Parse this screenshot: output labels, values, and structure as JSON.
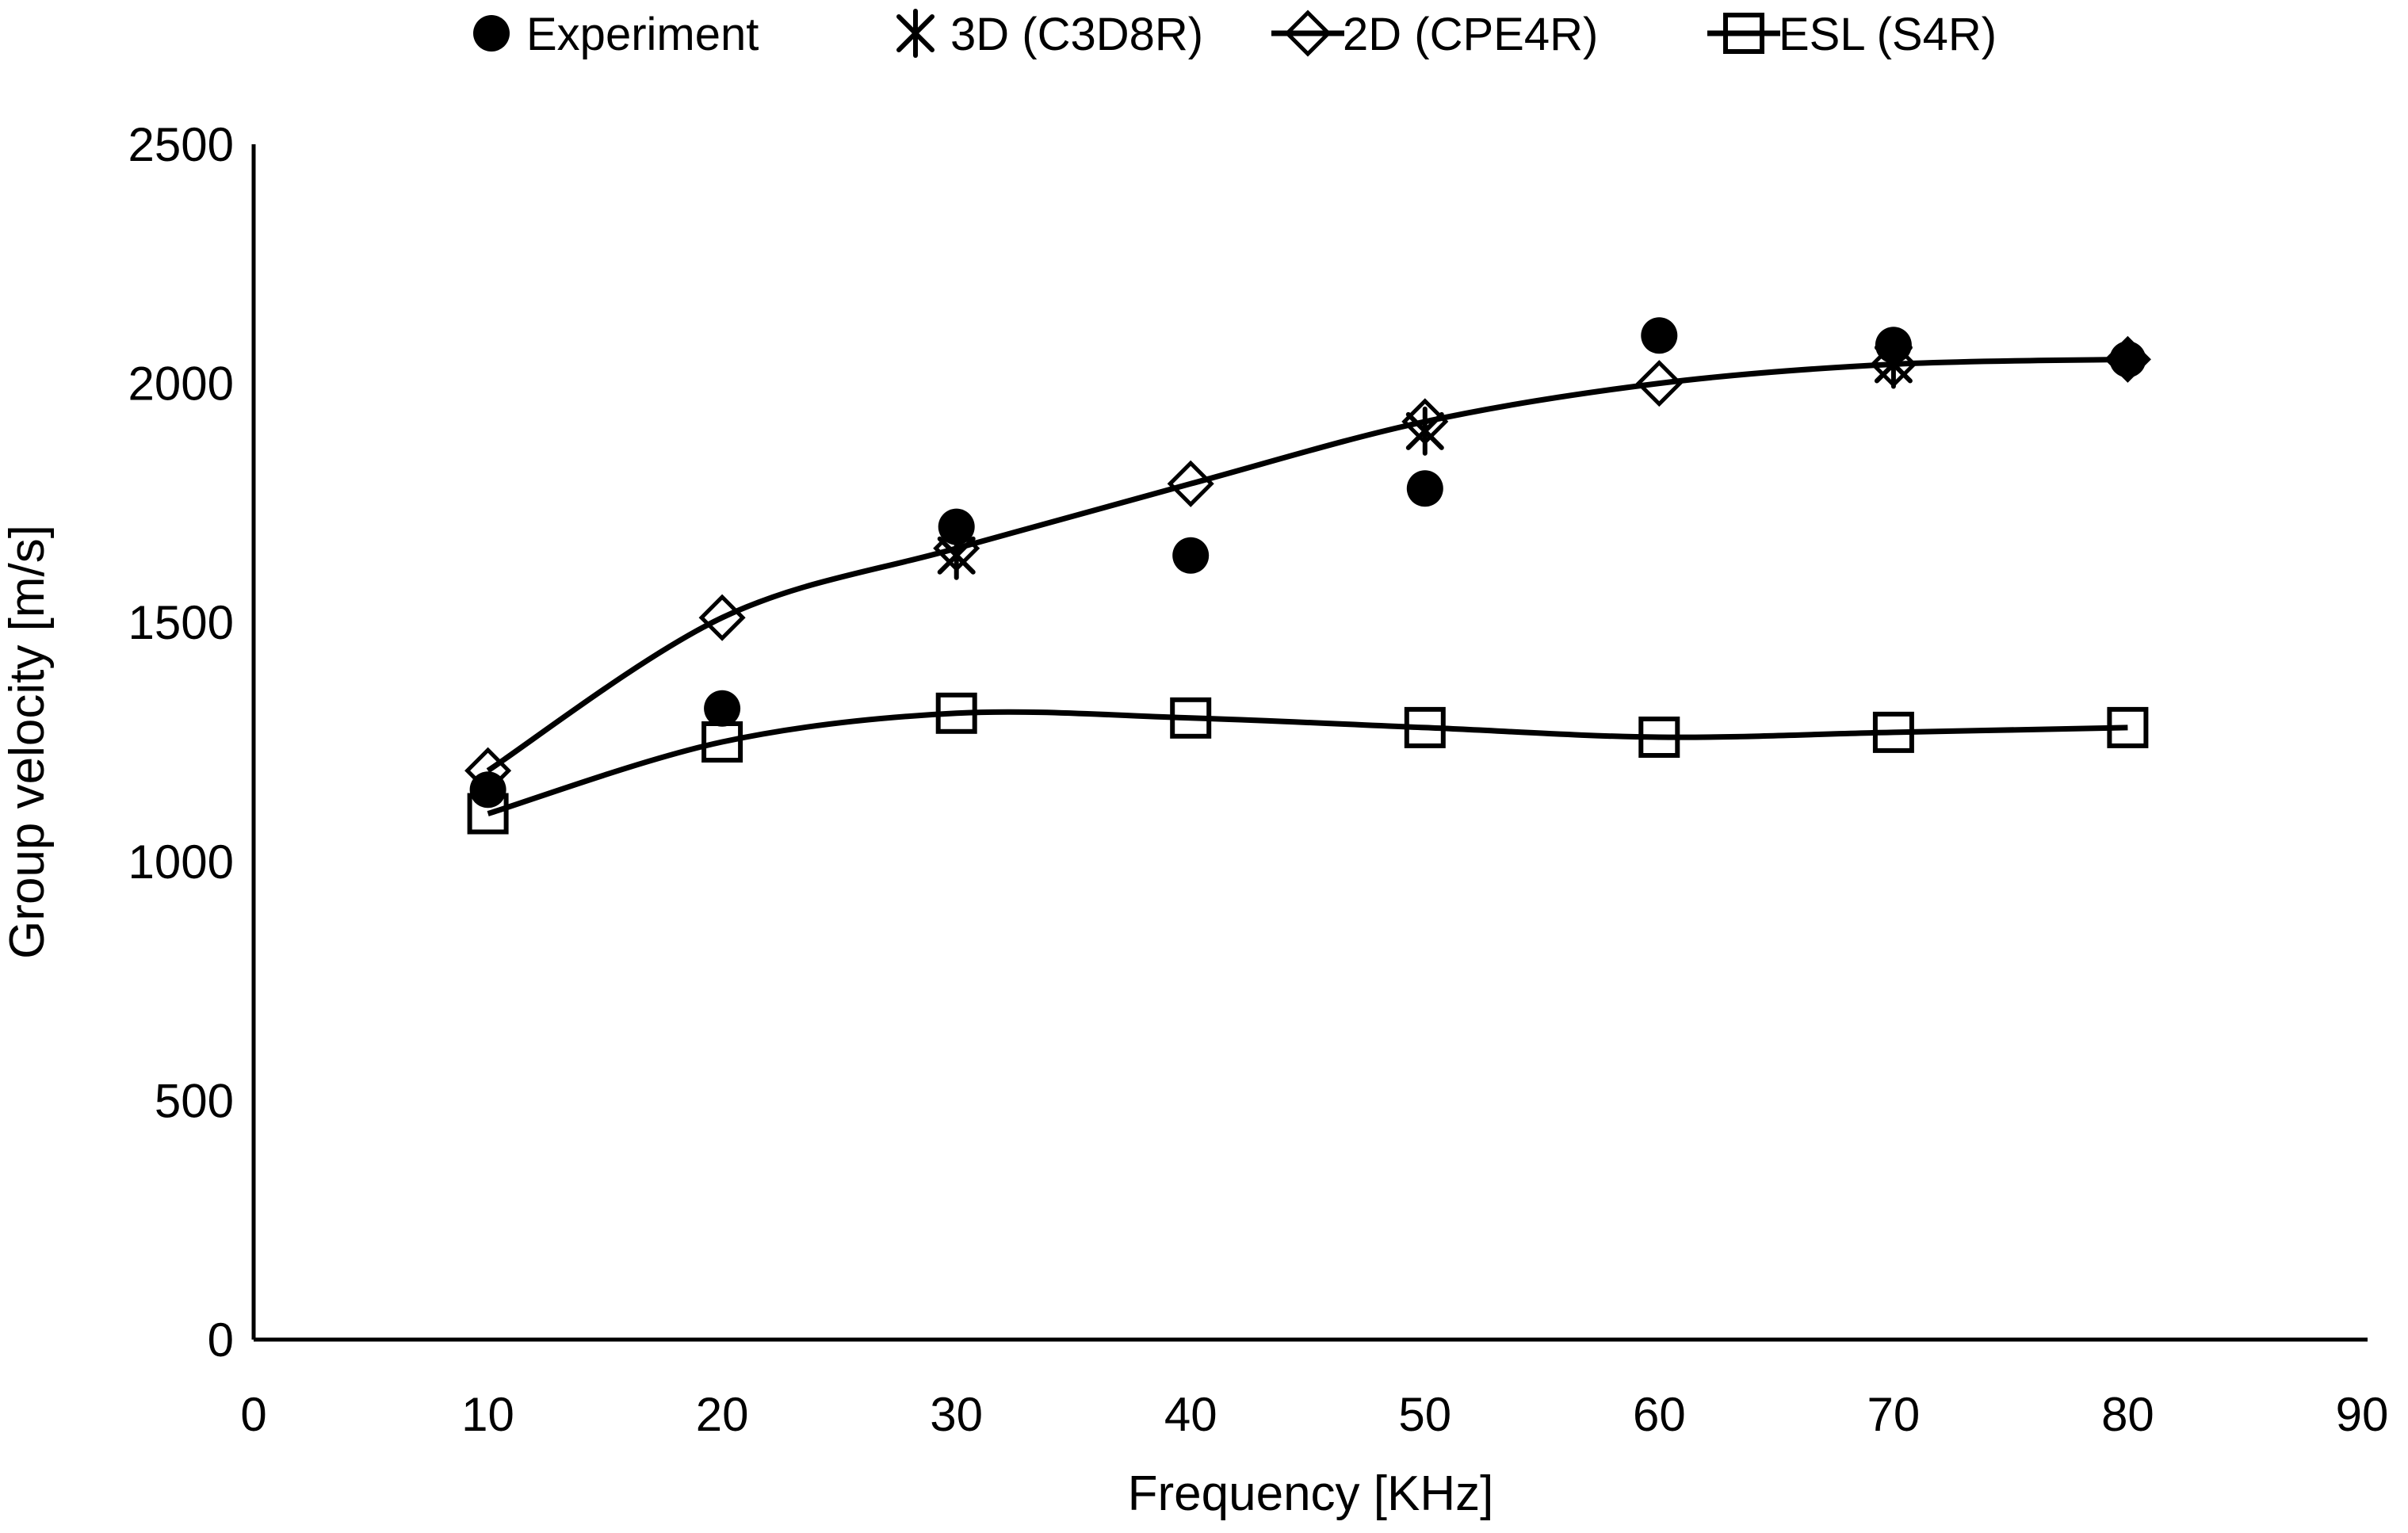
{
  "chart_data": {
    "type": "line",
    "title": "",
    "xlabel": "Frequency [KHz]",
    "ylabel": "Group velocity [m/s]",
    "xlim": [
      0,
      90
    ],
    "ylim": [
      0,
      2500
    ],
    "x_ticks": [
      0,
      10,
      20,
      30,
      40,
      50,
      60,
      70,
      80,
      90
    ],
    "y_ticks": [
      0,
      500,
      1000,
      1500,
      2000,
      2500
    ],
    "grid": false,
    "legend_position": "top-center",
    "colors": {
      "foreground": "#000000",
      "background": "#ffffff"
    },
    "series": [
      {
        "name": "Experiment",
        "marker": "filled-circle",
        "line": false,
        "points": [
          [
            10,
            1150
          ],
          [
            20,
            1320
          ],
          [
            30,
            1700
          ],
          [
            40,
            1640
          ],
          [
            50,
            1780
          ],
          [
            60,
            2100
          ],
          [
            70,
            2080
          ],
          [
            80,
            2050
          ]
        ]
      },
      {
        "name": "3D (C3D8R)",
        "marker": "asterisk",
        "line": false,
        "points": [
          [
            30,
            1640
          ],
          [
            50,
            1900
          ],
          [
            70,
            2040
          ]
        ]
      },
      {
        "name": "2D (CPE4R)",
        "marker": "open-diamond",
        "line": true,
        "points": [
          [
            10,
            1190
          ],
          [
            20,
            1510
          ],
          [
            30,
            1655
          ],
          [
            40,
            1790
          ],
          [
            50,
            1920
          ],
          [
            60,
            2000
          ],
          [
            70,
            2040
          ],
          [
            80,
            2050
          ]
        ]
      },
      {
        "name": "ESL (S4R)",
        "marker": "open-square",
        "line": true,
        "points": [
          [
            10,
            1100
          ],
          [
            20,
            1250
          ],
          [
            30,
            1310
          ],
          [
            40,
            1300
          ],
          [
            50,
            1280
          ],
          [
            60,
            1260
          ],
          [
            70,
            1270
          ],
          [
            80,
            1280
          ]
        ]
      }
    ]
  }
}
